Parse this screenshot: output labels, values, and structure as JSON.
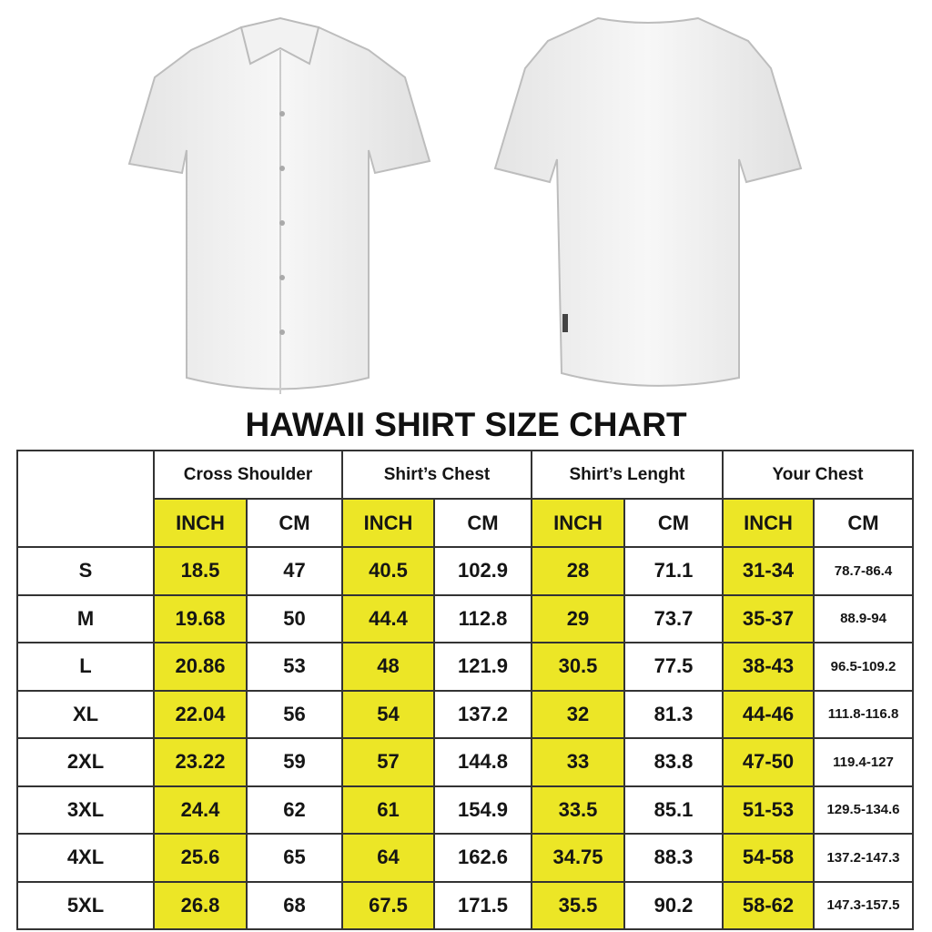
{
  "title": "HAWAII SHIRT SIZE CHART",
  "colors": {
    "inch_highlight": "#ece626",
    "border": "#333333"
  },
  "images": [
    "shirt-front",
    "shirt-back"
  ],
  "groups": [
    "Cross Shoulder",
    "Shirt’s Chest",
    "Shirt’s Lenght",
    "Your Chest"
  ],
  "units": {
    "inch": "INCH",
    "cm": "CM"
  },
  "rows": [
    {
      "size": "S",
      "cells": [
        "18.5",
        "47",
        "40.5",
        "102.9",
        "28",
        "71.1",
        "31-34",
        "78.7-86.4"
      ]
    },
    {
      "size": "M",
      "cells": [
        "19.68",
        "50",
        "44.4",
        "112.8",
        "29",
        "73.7",
        "35-37",
        "88.9-94"
      ]
    },
    {
      "size": "L",
      "cells": [
        "20.86",
        "53",
        "48",
        "121.9",
        "30.5",
        "77.5",
        "38-43",
        "96.5-109.2"
      ]
    },
    {
      "size": "XL",
      "cells": [
        "22.04",
        "56",
        "54",
        "137.2",
        "32",
        "81.3",
        "44-46",
        "111.8-116.8"
      ]
    },
    {
      "size": "2XL",
      "cells": [
        "23.22",
        "59",
        "57",
        "144.8",
        "33",
        "83.8",
        "47-50",
        "119.4-127"
      ]
    },
    {
      "size": "3XL",
      "cells": [
        "24.4",
        "62",
        "61",
        "154.9",
        "33.5",
        "85.1",
        "51-53",
        "129.5-134.6"
      ]
    },
    {
      "size": "4XL",
      "cells": [
        "25.6",
        "65",
        "64",
        "162.6",
        "34.75",
        "88.3",
        "54-58",
        "137.2-147.3"
      ]
    },
    {
      "size": "5XL",
      "cells": [
        "26.8",
        "68",
        "67.5",
        "171.5",
        "35.5",
        "90.2",
        "58-62",
        "147.3-157.5"
      ]
    }
  ]
}
